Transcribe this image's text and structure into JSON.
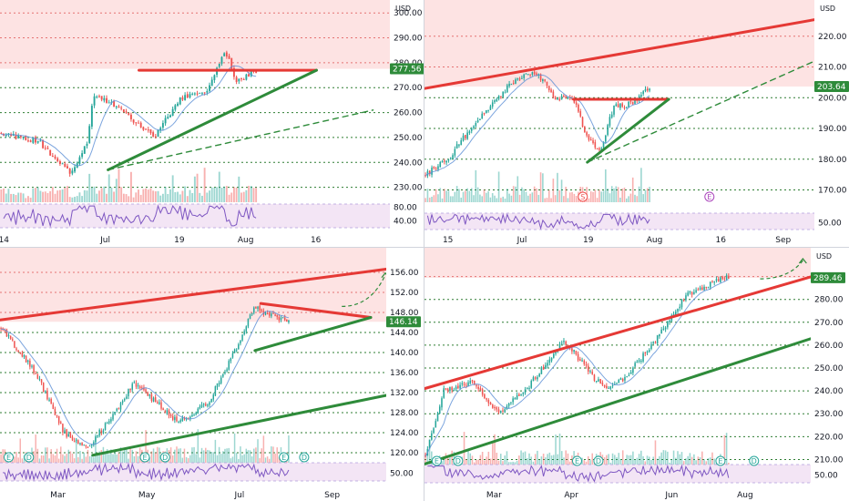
{
  "colors": {
    "up": "#26a69a",
    "down": "#ef5350",
    "red_zone": "#fde3e3",
    "support": "#2e8b3a",
    "resistance": "#e53935",
    "grid_dotted": "#2e7d32",
    "red_dotted": "#e57373",
    "rsi_band": "#f3e5f5",
    "rsi_line": "#7e57c2",
    "ma_line": "#5b8fd6",
    "divider": "#d1d4dc"
  },
  "chart_data": [
    {
      "type": "candlestick",
      "currency": "USD",
      "current_price_label": "277.56",
      "current_price": 277.56,
      "y_ticks": [
        "300.00",
        "290.00",
        "280.00",
        "270.00",
        "260.00",
        "250.00",
        "240.00",
        "230.00"
      ],
      "y_tick_values": [
        300,
        290,
        280,
        270,
        260,
        250,
        240,
        230
      ],
      "rsi_ticks": [
        "80.00",
        "40.00"
      ],
      "rsi_tick_values": [
        80,
        40
      ],
      "x_ticks": [
        "14",
        "Jul",
        "19",
        "Aug",
        "16"
      ],
      "price_range": [
        224,
        303
      ],
      "events": [],
      "start_price": 252,
      "seed": 11,
      "path": [
        [
          0,
          252
        ],
        [
          0.15,
          248
        ],
        [
          0.27,
          236
        ],
        [
          0.34,
          248
        ],
        [
          0.36,
          268
        ],
        [
          0.48,
          260
        ],
        [
          0.6,
          250
        ],
        [
          0.7,
          266
        ],
        [
          0.8,
          268
        ],
        [
          0.88,
          285
        ],
        [
          0.92,
          272
        ],
        [
          1.0,
          277
        ]
      ],
      "lines": [
        {
          "kind": "resistance",
          "style": "solid",
          "from": [
            0.54,
            277
          ],
          "to": [
            1.23,
            277
          ]
        },
        {
          "kind": "support",
          "style": "solid",
          "from": [
            0.42,
            237
          ],
          "to": [
            1.23,
            277
          ]
        },
        {
          "kind": "support",
          "style": "dashed",
          "from": [
            0.42,
            237
          ],
          "to": [
            1.45,
            261
          ]
        }
      ]
    },
    {
      "type": "candlestick",
      "currency": "USD",
      "current_price_label": "203.64",
      "current_price": 203.64,
      "y_ticks": [
        "220.00",
        "210.00",
        "200.00",
        "190.00",
        "180.00",
        "170.00"
      ],
      "y_tick_values": [
        220,
        210,
        200,
        190,
        180,
        170
      ],
      "rsi_ticks": [
        "50.00"
      ],
      "rsi_tick_values": [
        50
      ],
      "x_ticks": [
        "15",
        "Jul",
        "19",
        "Aug",
        "16",
        "Sep"
      ],
      "price_range": [
        166,
        230
      ],
      "events": [
        {
          "label": "S",
          "at": 0.7,
          "color": "#ef5350"
        },
        {
          "label": "E",
          "at": 1.26,
          "color": "#ab47bc"
        }
      ],
      "start_price": 175,
      "seed": 22,
      "path": [
        [
          0,
          175
        ],
        [
          0.1,
          180
        ],
        [
          0.22,
          192
        ],
        [
          0.4,
          206
        ],
        [
          0.5,
          208
        ],
        [
          0.58,
          200
        ],
        [
          0.66,
          200
        ],
        [
          0.72,
          187
        ],
        [
          0.78,
          183
        ],
        [
          0.84,
          197
        ],
        [
          0.92,
          198
        ],
        [
          1.0,
          203
        ]
      ],
      "lines": [
        {
          "kind": "resistance",
          "style": "solid",
          "from": [
            0.0,
            203
          ],
          "to": [
            1.85,
            227
          ]
        },
        {
          "kind": "resistance",
          "style": "solid",
          "from": [
            0.66,
            199.5
          ],
          "to": [
            1.08,
            199.5
          ]
        },
        {
          "kind": "support",
          "style": "solid",
          "from": [
            0.72,
            179
          ],
          "to": [
            1.08,
            199.5
          ]
        },
        {
          "kind": "support",
          "style": "dashed",
          "from": [
            0.72,
            179
          ],
          "to": [
            1.85,
            216
          ]
        }
      ]
    },
    {
      "type": "candlestick",
      "currency": "",
      "current_price_label": "146.14",
      "current_price": 146.14,
      "y_ticks": [
        "156.00",
        "152.00",
        "148.00",
        "144.00",
        "140.00",
        "136.00",
        "132.00",
        "128.00",
        "124.00",
        "120.00"
      ],
      "y_tick_values": [
        156,
        152,
        148,
        144,
        140,
        136,
        132,
        128,
        124,
        120
      ],
      "rsi_ticks": [
        "50.00"
      ],
      "rsi_tick_values": [
        50
      ],
      "x_ticks": [
        "Mar",
        "May",
        "Jul",
        "Sep"
      ],
      "price_range": [
        118,
        158
      ],
      "events": [
        {
          "label": "E",
          "at": 0.03,
          "color": "#26a69a"
        },
        {
          "label": "D",
          "at": 0.1,
          "color": "#26a69a"
        },
        {
          "label": "E",
          "at": 0.5,
          "color": "#26a69a"
        },
        {
          "label": "D",
          "at": 0.57,
          "color": "#26a69a"
        },
        {
          "label": "E",
          "at": 0.98,
          "color": "#26a69a"
        },
        {
          "label": "D",
          "at": 1.05,
          "color": "#26a69a"
        }
      ],
      "start_price": 145,
      "seed": 33,
      "path": [
        [
          0,
          145
        ],
        [
          0.12,
          136
        ],
        [
          0.22,
          124
        ],
        [
          0.3,
          121
        ],
        [
          0.4,
          128
        ],
        [
          0.46,
          134
        ],
        [
          0.54,
          130
        ],
        [
          0.62,
          126
        ],
        [
          0.72,
          130
        ],
        [
          0.82,
          141
        ],
        [
          0.88,
          149
        ],
        [
          1.0,
          146
        ]
      ],
      "lines": [
        {
          "kind": "resistance",
          "style": "solid",
          "from": [
            0.0,
            146.5
          ],
          "to": [
            1.38,
            157
          ]
        },
        {
          "kind": "resistance",
          "style": "solid",
          "from": [
            0.9,
            149.8
          ],
          "to": [
            1.28,
            147
          ]
        },
        {
          "kind": "support",
          "style": "solid",
          "from": [
            0.88,
            140.4
          ],
          "to": [
            1.28,
            147
          ]
        },
        {
          "kind": "support",
          "style": "solid",
          "from": [
            0.32,
            119.5
          ],
          "to": [
            1.38,
            132
          ]
        }
      ],
      "arrow": {
        "from": [
          1.18,
          149.2
        ],
        "to": [
          1.33,
          155.5
        ]
      }
    },
    {
      "type": "candlestick",
      "currency": "USD",
      "current_price_label": "289.46",
      "current_price": 289.46,
      "y_ticks": [
        "290.00",
        "280.00",
        "270.00",
        "260.00",
        "250.00",
        "240.00",
        "230.00",
        "220.00",
        "210.00"
      ],
      "y_tick_values": [
        290,
        280,
        270,
        260,
        250,
        240,
        230,
        220,
        210
      ],
      "rsi_ticks": [
        "50.00"
      ],
      "rsi_tick_values": [
        50
      ],
      "x_ticks": [
        "Mar",
        "Apr",
        "Jun",
        "Aug"
      ],
      "price_range": [
        207,
        297
      ],
      "events": [
        {
          "label": "E",
          "at": 0.04,
          "color": "#26a69a"
        },
        {
          "label": "D",
          "at": 0.11,
          "color": "#26a69a"
        },
        {
          "label": "E",
          "at": 0.5,
          "color": "#26a69a"
        },
        {
          "label": "D",
          "at": 0.57,
          "color": "#26a69a"
        },
        {
          "label": "E",
          "at": 0.97,
          "color": "#26a69a"
        },
        {
          "label": "D",
          "at": 1.08,
          "color": "#26a69a"
        }
      ],
      "start_price": 212,
      "seed": 44,
      "path": [
        [
          0,
          212
        ],
        [
          0.06,
          240
        ],
        [
          0.16,
          244
        ],
        [
          0.24,
          230
        ],
        [
          0.34,
          242
        ],
        [
          0.46,
          262
        ],
        [
          0.54,
          248
        ],
        [
          0.6,
          240
        ],
        [
          0.66,
          246
        ],
        [
          0.76,
          262
        ],
        [
          0.86,
          282
        ],
        [
          1.0,
          290
        ]
      ],
      "lines": [
        {
          "kind": "resistance",
          "style": "solid",
          "from": [
            0.0,
            241
          ],
          "to": [
            1.27,
            290
          ]
        },
        {
          "kind": "support",
          "style": "solid",
          "from": [
            0.0,
            208
          ],
          "to": [
            1.27,
            263
          ]
        }
      ],
      "arrow": {
        "from": [
          1.1,
          289
        ],
        "to": [
          1.24,
          297
        ]
      }
    }
  ]
}
